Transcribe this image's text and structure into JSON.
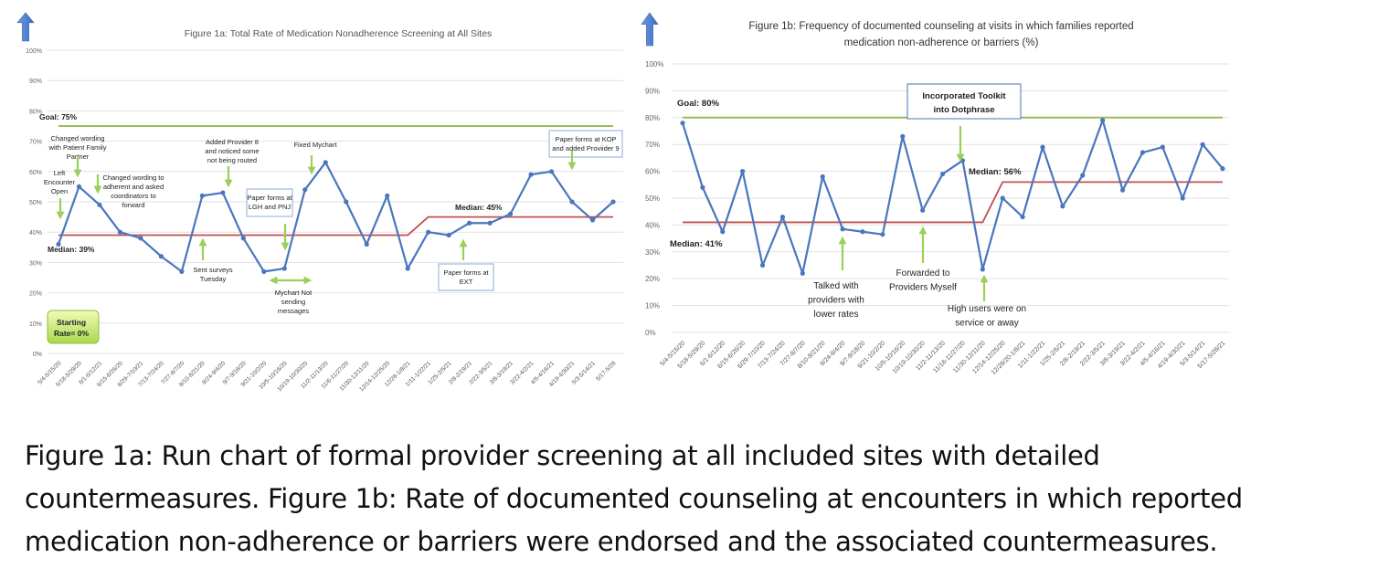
{
  "chart_data": [
    {
      "type": "line",
      "title": "Figure 1a: Total Rate of Medication Nonadherence Screening at All Sites",
      "ylim": [
        0,
        100
      ],
      "yticks": [
        "0%",
        "10%",
        "20%",
        "30%",
        "40%",
        "50%",
        "60%",
        "70%",
        "80%",
        "90%",
        "100%"
      ],
      "categories": [
        "5/4-5/15/20",
        "5/18-5/29/20",
        "6/1-6/12/21",
        "6/15-6/26/20",
        "6/29-7/10/21",
        "7/13-7/24/20",
        "7/27-8/7/20",
        "8/10-8/21/20",
        "8/24-9/4/20",
        "9/7-9/18/20",
        "9/21-10/2/20",
        "10/5-10/16/20",
        "10/19-10/30/20",
        "11/2-11/13/20",
        "11/6-11/27/20",
        "11/30-12/11/20",
        "12/14-12/25/20",
        "12/28-1/8/21",
        "1/11-1/22/21",
        "1/25-2/5/21",
        "2/8-2/19/21",
        "2/22-3/5/21",
        "3/8-3/19/21",
        "3/22-4/2/21",
        "4/5-4/16/21",
        "4/19-4/30/21",
        "5/3-5/14/21",
        "5/17-5/28"
      ],
      "series": [
        {
          "name": "Screening rate",
          "color": "#4a76bd",
          "values": [
            36,
            55,
            49,
            40,
            38,
            32,
            27,
            52,
            53,
            38,
            27,
            28,
            54,
            63,
            50,
            36,
            52,
            28,
            40,
            39,
            43,
            43,
            46,
            59,
            60,
            50,
            44,
            50
          ]
        },
        {
          "name": "Median",
          "color": "#c0504d",
          "values": [
            39,
            39,
            39,
            39,
            39,
            39,
            39,
            39,
            39,
            39,
            39,
            39,
            39,
            39,
            39,
            39,
            39,
            39,
            45,
            45,
            45,
            45,
            45,
            45,
            45,
            45,
            45,
            45
          ]
        },
        {
          "name": "Goal",
          "color": "#9bbb59",
          "values": [
            75,
            75,
            75,
            75,
            75,
            75,
            75,
            75,
            75,
            75,
            75,
            75,
            75,
            75,
            75,
            75,
            75,
            75,
            75,
            75,
            75,
            75,
            75,
            75,
            75,
            75,
            75,
            75
          ]
        }
      ],
      "labels": {
        "goal": "Goal: 75%",
        "median1": "Median: 39%",
        "median2": "Median: 45%",
        "starting": [
          "Starting",
          "Rate= 0%"
        ]
      },
      "annotations": [
        [
          "Changed wording",
          "with Patient Family",
          "Partner"
        ],
        [
          "Left",
          "Encounter",
          "Open"
        ],
        [
          "Changed wording to",
          "adherent and asked",
          "coordinators to",
          "forward"
        ],
        [
          "Added Provider 8",
          "and noticed some",
          "not being routed"
        ],
        [
          "Fixed Mychart"
        ],
        [
          "Paper forms at",
          "LGH and PNJ"
        ],
        [
          "Sent surveys",
          "Tuesday"
        ],
        [
          "Mychart Not",
          "sending",
          "messages"
        ],
        [
          "Paper forms at",
          "EXT"
        ],
        [
          "Paper forms at KOP",
          "and added Proviider 9"
        ]
      ]
    },
    {
      "type": "line",
      "title": [
        "Figure 1b: Frequency of documented counseling at visits in which families reported",
        "medication non-adherence or barriers (%)"
      ],
      "ylim": [
        0,
        100
      ],
      "yticks": [
        "0%",
        "10%",
        "20%",
        "30%",
        "40%",
        "50%",
        "60%",
        "70%",
        "80%",
        "90%",
        "100%"
      ],
      "categories": [
        "5/4-5/15/20",
        "5/18-5/29/20",
        "6/1-6/12/20",
        "6/15-6/26/20",
        "6/29-7/10/20",
        "7/13-7/24/20",
        "7/27-8/7/20",
        "8/10-8/21/20",
        "8/24-9/4/20",
        "9/7-9/18/20",
        "9/21-10/2/20",
        "10/5-10/16/20",
        "10/19-10/30/20",
        "11/2-11/13/20",
        "11/16-11/27/20",
        "11/30-12/11/20",
        "12/14-12/25/20",
        "12/28/20-1/8/21",
        "1/11-1/22/21",
        "1/25-2/5/21",
        "2/8-2/19/21",
        "2/22-3/5/21",
        "3/8-3/19/21",
        "3/22-4/2/21",
        "4/5-4/16/21",
        "4/19-4/30/21",
        "5/3-5/14/21",
        "5/17-5/28/21"
      ],
      "series": [
        {
          "name": "Counseling rate",
          "color": "#4a76bd",
          "values": [
            78,
            54,
            37.5,
            60,
            25,
            43,
            22,
            58,
            38.5,
            37.5,
            36.5,
            73,
            45.5,
            59,
            64,
            23.5,
            50,
            43,
            69,
            47,
            58.5,
            79,
            53,
            67,
            69,
            50,
            70,
            61
          ]
        },
        {
          "name": "Median",
          "color": "#c0504d",
          "values": [
            41,
            41,
            41,
            41,
            41,
            41,
            41,
            41,
            41,
            41,
            41,
            41,
            41,
            41,
            41,
            41,
            56,
            56,
            56,
            56,
            56,
            56,
            56,
            56,
            56,
            56,
            56,
            56
          ]
        },
        {
          "name": "Goal",
          "color": "#9bbb59",
          "values": [
            80,
            80,
            80,
            80,
            80,
            80,
            80,
            80,
            80,
            80,
            80,
            80,
            80,
            80,
            80,
            80,
            80,
            80,
            80,
            80,
            80,
            80,
            80,
            80,
            80,
            80,
            80,
            80
          ]
        }
      ],
      "labels": {
        "goal": "Goal: 80%",
        "median1": "Median: 41%",
        "median2": "Median: 56%"
      },
      "annotations": [
        [
          "Incorporated Toolkit",
          "into Dotphrase"
        ],
        [
          "Talked with",
          "providers with",
          "lower rates"
        ],
        [
          "Forwarded to",
          "Providers Myself"
        ],
        [
          "High users were on",
          "service or away"
        ]
      ]
    }
  ],
  "caption": [
    "Figure 1a: Run chart of formal provider screening at all included sites with detailed",
    "countermeasures. Figure 1b: Rate of documented counseling at encounters in which reported",
    "medication non-adherence or barriers were endorsed and the associated countermeasures."
  ]
}
